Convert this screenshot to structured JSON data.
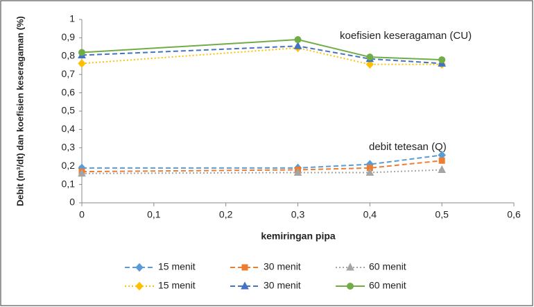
{
  "chart_data": {
    "type": "line",
    "y_label": "Debit (m³/dt) dan koefisien keseragaman (%)",
    "x_label": "kemiringan pipa",
    "annotations": [
      "koefisien keseragaman (CU)",
      "debit tetesan (Q)"
    ],
    "x": [
      0,
      0.3,
      0.4,
      0.5
    ],
    "xlim": [
      0,
      0.6
    ],
    "xticks": [
      0,
      {
        "value": 0.1,
        "label": "0,1"
      },
      {
        "value": 0.2,
        "label": "0,2"
      },
      {
        "value": 0.3,
        "label": "0,3"
      },
      {
        "value": 0.4,
        "label": "0,4"
      },
      {
        "value": 0.5,
        "label": "0,5"
      },
      {
        "value": 0.6,
        "label": "0,6"
      }
    ],
    "ylim": [
      0,
      1
    ],
    "yticks": [
      0,
      {
        "value": 0.1,
        "label": "0,1"
      },
      {
        "value": 0.2,
        "label": "0,2"
      },
      {
        "value": 0.3,
        "label": "0,3"
      },
      {
        "value": 0.4,
        "label": "0,4"
      },
      {
        "value": 0.5,
        "label": "0,5"
      },
      {
        "value": 0.6,
        "label": "0,6"
      },
      {
        "value": 0.7,
        "label": "0,7"
      },
      {
        "value": 0.8,
        "label": "0,8"
      },
      {
        "value": 0.9,
        "label": "0,9"
      },
      1
    ],
    "grid": false,
    "legend": "bottom",
    "series": [
      {
        "name": "15 menit",
        "color": "#5b9bd5",
        "line_style": "dashed",
        "marker": "diamond",
        "values": [
          0.19,
          0.19,
          0.21,
          0.26
        ]
      },
      {
        "name": "30 menit",
        "color": "#ed7d31",
        "line_style": "dashed",
        "marker": "square",
        "values": [
          0.17,
          0.18,
          0.19,
          0.23
        ]
      },
      {
        "name": "60 menit",
        "color": "#a5a5a5",
        "line_style": "dotted",
        "marker": "triangle",
        "values": [
          0.16,
          0.165,
          0.165,
          0.18
        ]
      },
      {
        "name": "15 menit",
        "color": "#ffc000",
        "line_style": "dotted",
        "marker": "diamond",
        "values": [
          0.76,
          0.845,
          0.755,
          0.755
        ]
      },
      {
        "name": "30 menit",
        "color": "#4472c4",
        "line_style": "dashed",
        "marker": "triangle",
        "values": [
          0.805,
          0.855,
          0.785,
          0.76
        ]
      },
      {
        "name": "60 menit",
        "color": "#70ad47",
        "line_style": "solid",
        "marker": "circle",
        "values": [
          0.82,
          0.89,
          0.795,
          0.78
        ]
      }
    ]
  }
}
